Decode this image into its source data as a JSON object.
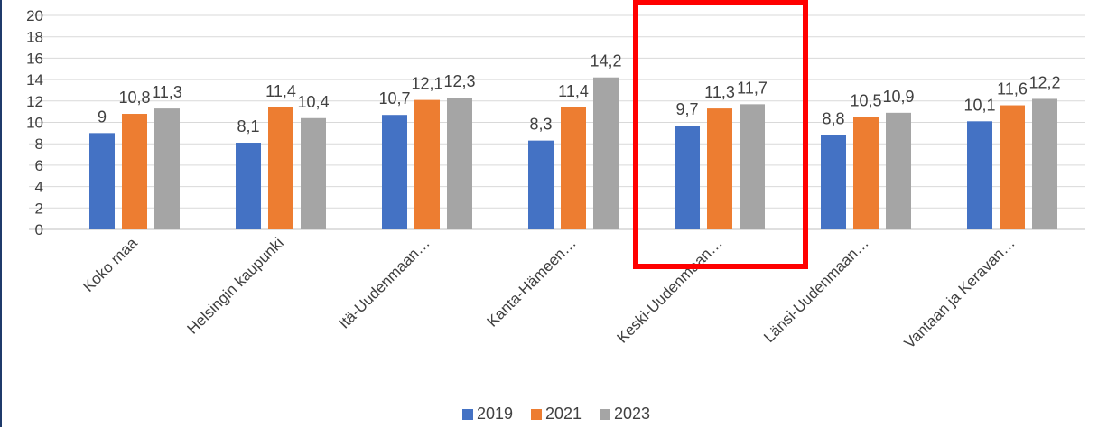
{
  "chart_data": {
    "type": "bar",
    "title": "",
    "xlabel": "",
    "ylabel": "",
    "categories": [
      "Koko maa",
      "Helsingin kaupunki",
      "Itä-Uudenmaan…",
      "Kanta-Hämeen…",
      "Keski-Uudenmaan…",
      "Länsi-Uudenmaan…",
      "Vantaan ja Keravan…"
    ],
    "series": [
      {
        "name": "2019",
        "color": "#4472C4",
        "values": [
          9,
          8.1,
          10.7,
          8.3,
          9.7,
          8.8,
          10.1
        ],
        "labels": [
          "9",
          "8,1",
          "10,7",
          "8,3",
          "9,7",
          "8,8",
          "10,1"
        ]
      },
      {
        "name": "2021",
        "color": "#ED7D31",
        "values": [
          10.8,
          11.4,
          12.1,
          11.4,
          11.3,
          10.5,
          11.6
        ],
        "labels": [
          "10,8",
          "11,4",
          "12,1",
          "11,4",
          "11,3",
          "10,5",
          "11,6"
        ]
      },
      {
        "name": "2023",
        "color": "#A5A5A5",
        "values": [
          11.3,
          10.4,
          12.3,
          14.2,
          11.7,
          10.9,
          12.2
        ],
        "labels": [
          "11,3",
          "10,4",
          "12,3",
          "14,2",
          "11,7",
          "10,9",
          "12,2"
        ]
      }
    ],
    "ylim": [
      0,
      20
    ],
    "yticks": [
      0,
      2,
      4,
      6,
      8,
      10,
      12,
      14,
      16,
      18,
      20
    ],
    "grid": true,
    "legend": "bottom",
    "highlight": {
      "category_index": 4,
      "color": "#FF0000"
    }
  }
}
